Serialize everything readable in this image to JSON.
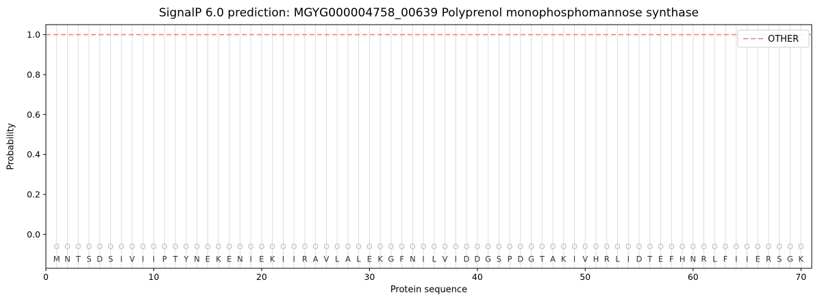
{
  "chart_data": {
    "type": "line",
    "title": "SignalP 6.0 prediction: MGYG000004758_00639 Polyprenol monophosphomannose synthase",
    "xlabel": "Protein sequence",
    "ylabel": "Probability",
    "xlim": [
      0,
      71
    ],
    "ylim": [
      -0.17,
      1.05
    ],
    "xticks": [
      0,
      10,
      20,
      30,
      40,
      50,
      60,
      70
    ],
    "yticks": [
      0.0,
      0.2,
      0.4,
      0.6,
      0.8,
      1.0
    ],
    "grid": true,
    "legend": {
      "position": "upper right",
      "entries": [
        "OTHER"
      ]
    },
    "series": [
      {
        "name": "OTHER",
        "line_style": "dashed",
        "color": "#f87272",
        "constant_value": 1.0
      }
    ],
    "sequence": "MNTSDSIVIIPTYNEKENIEKIIRAVLALEKGFNILVIDDGSPDGTAKIVHRLIDTEFHNRLFIIERSGK",
    "marker_row_char": "O",
    "marker_y": -0.06,
    "sequence_y": -0.123,
    "colors": {
      "grid": "#dcdcdc",
      "spine": "#000000",
      "sequence": "#333333",
      "marker": "#b9b9b9",
      "tick": "#000000",
      "legend_border": "#cccccc",
      "legend_bg": "rgba(255,255,255,0.9)"
    }
  }
}
